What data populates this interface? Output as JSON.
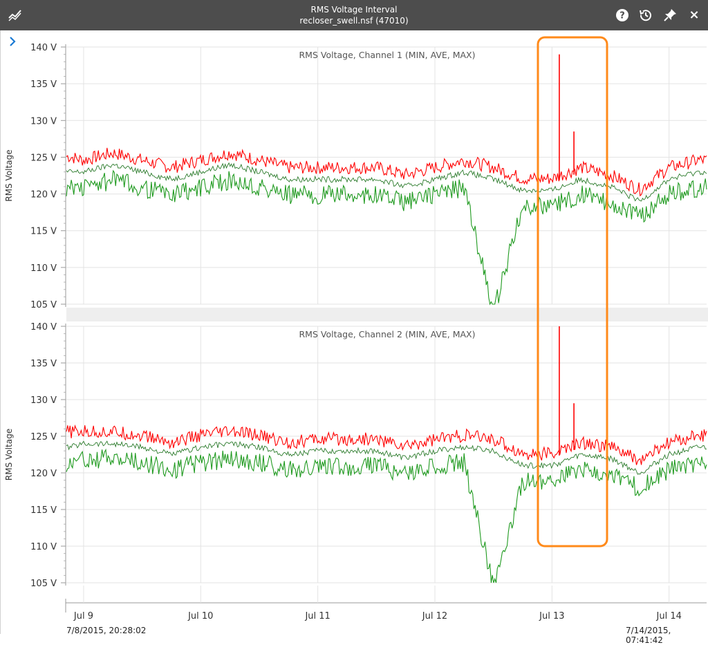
{
  "window": {
    "title": "RMS Voltage Interval",
    "subtitle": "recloser_swell.nsf (47010)",
    "icons": [
      "chart-line-icon",
      "help-icon",
      "history-icon",
      "pin-icon",
      "close-icon"
    ],
    "close_label": "×"
  },
  "colors": {
    "max": "#ff0000",
    "min": "#1f9a1f",
    "ave": "#2a7a2a",
    "highlight": "#ff8a1a",
    "titlebar": "#4d4d4d"
  },
  "time_range": {
    "start": "7/8/2015, 20:28:02",
    "end": "7/14/2015, 07:41:42"
  },
  "chart_data": [
    {
      "type": "line",
      "title": "RMS Voltage, Channel 1 (MIN, AVE, MAX)",
      "ylabel": "RMS Voltage",
      "ylim": [
        105,
        140
      ],
      "yticks": [
        "105 V",
        "110 V",
        "115 V",
        "120 V",
        "125 V",
        "130 V",
        "135 V",
        "140 V"
      ],
      "xticks": [
        "Jul 9",
        "Jul 10",
        "Jul 11",
        "Jul 12",
        "Jul 13",
        "Jul 14"
      ],
      "grid": true,
      "series": [
        {
          "x": [
            "7/8 21:00",
            "7/9 00:00",
            "7/9 06:00",
            "7/9 12:00",
            "7/9 18:00",
            "7/10 00:00",
            "7/10 06:00",
            "7/10 12:00",
            "7/10 18:00",
            "7/11 00:00",
            "7/11 06:00",
            "7/11 12:00",
            "7/11 18:00",
            "7/12 00:00",
            "7/12 06:00",
            "7/12 12:00",
            "7/12 18:00",
            "7/13 00:00",
            "7/13 06:00",
            "7/13 12:00",
            "7/13 18:00",
            "7/14 00:00",
            "7/14 06:00"
          ],
          "values": [
            124.5,
            124,
            125,
            124,
            123,
            124,
            125,
            124,
            123,
            123,
            123,
            123,
            122,
            123,
            124,
            123,
            121.5,
            121.5,
            123,
            122,
            120,
            123,
            124
          ]
        },
        {
          "x": [
            "7/8 21:00",
            "7/9 00:00",
            "7/9 06:00",
            "7/9 12:00",
            "7/9 18:00",
            "7/10 00:00",
            "7/10 06:00",
            "7/10 12:00",
            "7/10 18:00",
            "7/11 00:00",
            "7/11 06:00",
            "7/11 12:00",
            "7/11 18:00",
            "7/12 00:00",
            "7/12 06:00",
            "7/12 12:00",
            "7/12 18:00",
            "7/13 00:00",
            "7/13 06:00",
            "7/13 12:00",
            "7/13 18:00",
            "7/14 00:00",
            "7/14 06:00"
          ],
          "values": [
            123,
            123,
            124,
            123,
            122,
            123,
            124,
            123,
            122,
            122,
            122,
            122,
            121,
            122,
            123,
            122,
            120.5,
            120.5,
            122,
            121,
            119,
            122,
            123
          ]
        },
        {
          "x": [
            "7/8 21:00",
            "7/9 00:00",
            "7/9 06:00",
            "7/9 12:00",
            "7/9 18:00",
            "7/10 00:00",
            "7/10 06:00",
            "7/10 12:00",
            "7/10 18:00",
            "7/11 00:00",
            "7/11 06:00",
            "7/11 12:00",
            "7/11 18:00",
            "7/12 00:00",
            "7/12 06:00",
            "7/12 12:00",
            "7/12 18:00",
            "7/13 00:00",
            "7/13 06:00",
            "7/13 12:00",
            "7/13 18:00",
            "7/14 00:00",
            "7/14 06:00"
          ],
          "values": [
            122,
            122,
            123,
            122,
            121,
            122,
            123,
            122,
            121,
            121,
            121,
            121,
            120,
            121,
            122,
            105,
            119.5,
            119.5,
            121,
            120,
            118,
            121,
            122
          ]
        }
      ],
      "peaks": [
        {
          "x": "7/13 01:30",
          "value": 139
        },
        {
          "x": "7/13 04:30",
          "value": 128.5
        }
      ]
    },
    {
      "type": "line",
      "title": "RMS Voltage, Channel 2 (MIN, AVE, MAX)",
      "ylabel": "RMS Voltage",
      "ylim": [
        105,
        140
      ],
      "yticks": [
        "105 V",
        "110 V",
        "115 V",
        "120 V",
        "125 V",
        "130 V",
        "135 V",
        "140 V"
      ],
      "xticks": [
        "Jul 9",
        "Jul 10",
        "Jul 11",
        "Jul 12",
        "Jul 13",
        "Jul 14"
      ],
      "grid": true,
      "series": [
        {
          "x": [
            "7/8 21:00",
            "7/9 00:00",
            "7/9 06:00",
            "7/9 12:00",
            "7/9 18:00",
            "7/10 00:00",
            "7/10 06:00",
            "7/10 12:00",
            "7/10 18:00",
            "7/11 00:00",
            "7/11 06:00",
            "7/11 12:00",
            "7/11 18:00",
            "7/12 00:00",
            "7/12 06:00",
            "7/12 12:00",
            "7/12 18:00",
            "7/13 00:00",
            "7/13 06:00",
            "7/13 12:00",
            "7/13 18:00",
            "7/14 00:00",
            "7/14 06:00"
          ],
          "values": [
            125,
            125,
            125,
            124.5,
            123.5,
            124.5,
            125,
            124.5,
            123.5,
            124,
            124,
            124,
            123,
            124,
            124.5,
            124,
            122,
            122,
            123.5,
            123,
            121,
            123.5,
            124.5
          ]
        },
        {
          "x": [
            "7/8 21:00",
            "7/9 00:00",
            "7/9 06:00",
            "7/9 12:00",
            "7/9 18:00",
            "7/10 00:00",
            "7/10 06:00",
            "7/10 12:00",
            "7/10 18:00",
            "7/11 00:00",
            "7/11 06:00",
            "7/11 12:00",
            "7/11 18:00",
            "7/12 00:00",
            "7/12 06:00",
            "7/12 12:00",
            "7/12 18:00",
            "7/13 00:00",
            "7/13 06:00",
            "7/13 12:00",
            "7/13 18:00",
            "7/14 00:00",
            "7/14 06:00"
          ],
          "values": [
            123.5,
            124,
            124,
            123.5,
            122.5,
            123.5,
            124,
            123.5,
            122.5,
            123,
            123,
            123,
            122,
            123,
            123.5,
            123,
            121,
            121,
            122.5,
            122,
            120,
            122.5,
            123.5
          ]
        },
        {
          "x": [
            "7/8 21:00",
            "7/9 00:00",
            "7/9 06:00",
            "7/9 12:00",
            "7/9 18:00",
            "7/10 00:00",
            "7/10 06:00",
            "7/10 12:00",
            "7/10 18:00",
            "7/11 00:00",
            "7/11 06:00",
            "7/11 12:00",
            "7/11 18:00",
            "7/12 00:00",
            "7/12 06:00",
            "7/12 12:00",
            "7/12 18:00",
            "7/13 00:00",
            "7/13 06:00",
            "7/13 12:00",
            "7/13 18:00",
            "7/14 00:00",
            "7/14 06:00"
          ],
          "values": [
            122.5,
            123,
            123,
            122.5,
            121.5,
            122.5,
            123,
            122.5,
            121.5,
            122,
            122,
            122,
            121,
            122,
            122.5,
            105.5,
            120,
            120,
            121.5,
            121,
            119,
            121.5,
            122.5
          ]
        }
      ],
      "peaks": [
        {
          "x": "7/13 01:30",
          "value": 140
        },
        {
          "x": "7/13 04:30",
          "value": 129.5
        }
      ]
    }
  ]
}
